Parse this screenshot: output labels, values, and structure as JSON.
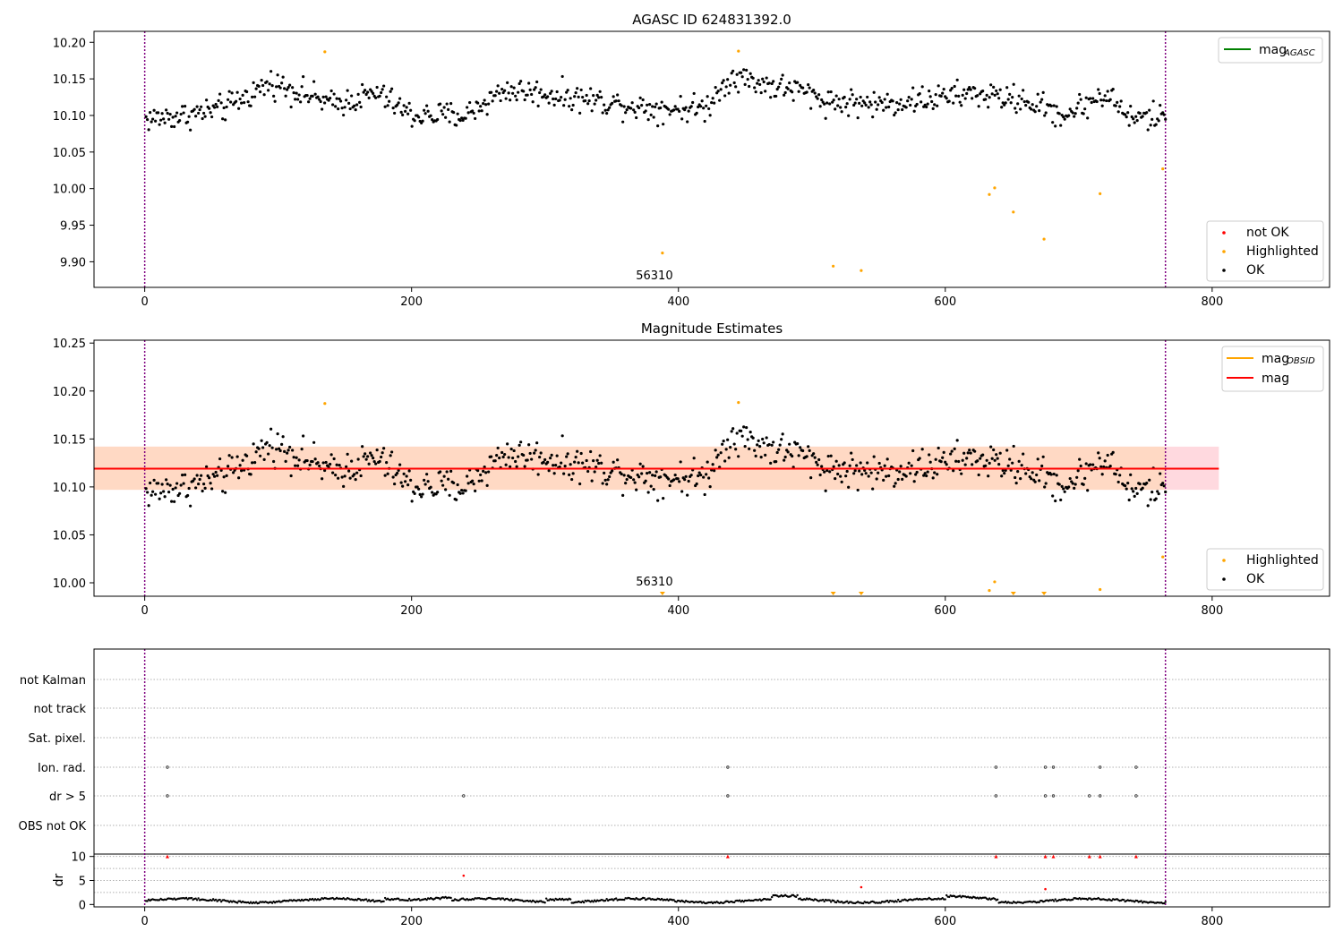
{
  "chart_data": [
    {
      "type": "scatter",
      "title": "AGASC ID 624831392.0",
      "xlim": [
        -38,
        888
      ],
      "ylim": [
        9.865,
        10.215
      ],
      "x_ticks": [
        0,
        200,
        400,
        600,
        800
      ],
      "y_ticks": [
        9.9,
        9.95,
        10.0,
        10.05,
        10.1,
        10.15,
        10.2
      ],
      "y_tick_labels": [
        "9.90",
        "9.95",
        "10.00",
        "10.05",
        "10.10",
        "10.15",
        "10.20"
      ],
      "obsid_lines_x": [
        0,
        765
      ],
      "obsid_label": {
        "text": "56310",
        "x": 382,
        "y": 9.876
      },
      "lines": [
        {
          "name": "mag",
          "sub": "AGASC",
          "color": "#008000",
          "y": null
        }
      ],
      "series": [
        {
          "name": "not OK",
          "color": "#ff0000",
          "points": []
        },
        {
          "name": "Highlighted",
          "color": "#ffa500",
          "points": [
            [
              135,
              10.187
            ],
            [
              388,
              9.912
            ],
            [
              445,
              10.188
            ],
            [
              516,
              9.894
            ],
            [
              537,
              9.888
            ],
            [
              633,
              9.992
            ],
            [
              637,
              10.001
            ],
            [
              651,
              9.968
            ],
            [
              674,
              9.931
            ],
            [
              716,
              9.993
            ],
            [
              763,
              10.027
            ]
          ]
        },
        {
          "name": "OK",
          "color": "#000000",
          "generated": true,
          "n": 760,
          "x_start": 1,
          "x_end": 765,
          "waypoints": [
            [
              0,
              10.095
            ],
            [
              30,
              10.1
            ],
            [
              60,
              10.11
            ],
            [
              95,
              10.145
            ],
            [
              120,
              10.13
            ],
            [
              140,
              10.115
            ],
            [
              175,
              10.13
            ],
            [
              200,
              10.1
            ],
            [
              240,
              10.1
            ],
            [
              270,
              10.135
            ],
            [
              300,
              10.13
            ],
            [
              340,
              10.12
            ],
            [
              380,
              10.11
            ],
            [
              420,
              10.11
            ],
            [
              440,
              10.155
            ],
            [
              470,
              10.14
            ],
            [
              490,
              10.135
            ],
            [
              510,
              10.12
            ],
            [
              550,
              10.115
            ],
            [
              600,
              10.125
            ],
            [
              620,
              10.13
            ],
            [
              660,
              10.12
            ],
            [
              690,
              10.1
            ],
            [
              720,
              10.13
            ],
            [
              740,
              10.095
            ],
            [
              765,
              10.1
            ]
          ],
          "spread": 0.013
        }
      ],
      "legend_lines_loc": "upper-right",
      "legend_points_loc": "lower-right"
    },
    {
      "type": "scatter",
      "title": "Magnitude Estimates",
      "xlim": [
        -38,
        888
      ],
      "ylim": [
        9.986,
        10.253
      ],
      "x_ticks": [
        0,
        200,
        400,
        600,
        800
      ],
      "y_ticks": [
        10.0,
        10.05,
        10.1,
        10.15,
        10.2,
        10.25
      ],
      "y_tick_labels": [
        "10.00",
        "10.05",
        "10.10",
        "10.15",
        "10.20",
        "10.25"
      ],
      "obsid_lines_x": [
        0,
        765
      ],
      "obsid_label": {
        "text": "56310",
        "x": 382,
        "y": 9.997
      },
      "band": {
        "x": [
          -38,
          805
        ],
        "y": [
          10.097,
          10.142
        ],
        "colors": [
          "#ffd9df",
          "#ffd9c4"
        ]
      },
      "lines": [
        {
          "name": "mag",
          "sub": "OBSID",
          "color": "#ffa500",
          "y": null
        },
        {
          "name": "mag",
          "sub": "",
          "color": "#ff0000",
          "y": 10.119,
          "x": [
            -38,
            805
          ]
        }
      ],
      "series": [
        {
          "name": "Highlighted",
          "color": "#ffa500",
          "points": [
            [
              135,
              10.187
            ],
            [
              445,
              10.188
            ],
            [
              633,
              9.992
            ],
            [
              637,
              10.001
            ],
            [
              716,
              9.993
            ],
            [
              763,
              10.027
            ]
          ],
          "clipped_points": [
            388,
            516,
            537,
            651,
            674
          ]
        },
        {
          "name": "OK",
          "color": "#000000",
          "generated": true,
          "same_as": 0
        }
      ],
      "legend_lines_loc": "upper-right",
      "legend_points_loc": "lower-right"
    },
    {
      "type": "scatter",
      "title": "",
      "xlim": [
        -38,
        888
      ],
      "x_ticks": [
        0,
        200,
        400,
        600,
        800
      ],
      "obsid_lines_x": [
        0,
        765
      ],
      "categories": [
        "not Kalman",
        "not track",
        "Sat. pixel.",
        "Ion. rad.",
        "dr > 5",
        "OBS not OK"
      ],
      "flag_points": {
        "Ion. rad.": [
          17,
          437,
          638,
          675,
          681,
          716,
          743
        ],
        "dr > 5": [
          17,
          239,
          437,
          638,
          675,
          681,
          708,
          716,
          743
        ]
      },
      "dr": {
        "ylabel": "dr",
        "ylim": [
          -0.5,
          10.5
        ],
        "y_ticks": [
          0,
          5,
          10
        ],
        "y_tick_labels": [
          "0",
          "5",
          "10"
        ],
        "grid_y": [
          2.5,
          5,
          7.5,
          10
        ],
        "red_points": [
          [
            17,
            10.0
          ],
          [
            239,
            6.0
          ],
          [
            437,
            10.0
          ],
          [
            537,
            3.6
          ],
          [
            638,
            10.0
          ],
          [
            675,
            3.2
          ],
          [
            675,
            10.0
          ],
          [
            681,
            10.0
          ],
          [
            708,
            10.0
          ],
          [
            716,
            10.0
          ],
          [
            743,
            10.0
          ]
        ]
      }
    }
  ]
}
